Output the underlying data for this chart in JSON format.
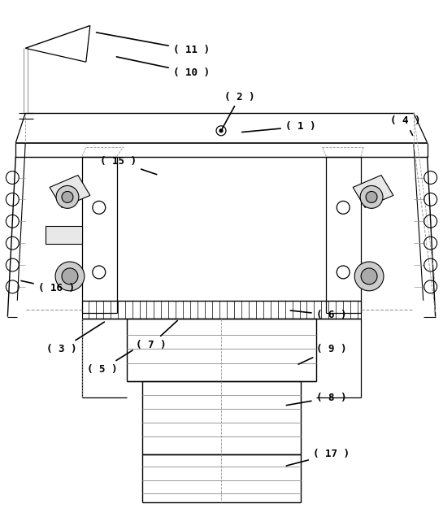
{
  "fig_width": 5.45,
  "fig_height": 6.41,
  "dpi": 100,
  "bg_color": "#ffffff",
  "line_color": "#000000",
  "gray1": "#cccccc",
  "gray2": "#e8e8e8",
  "gray3": "#aaaaaa",
  "dashed_color": "#999999"
}
